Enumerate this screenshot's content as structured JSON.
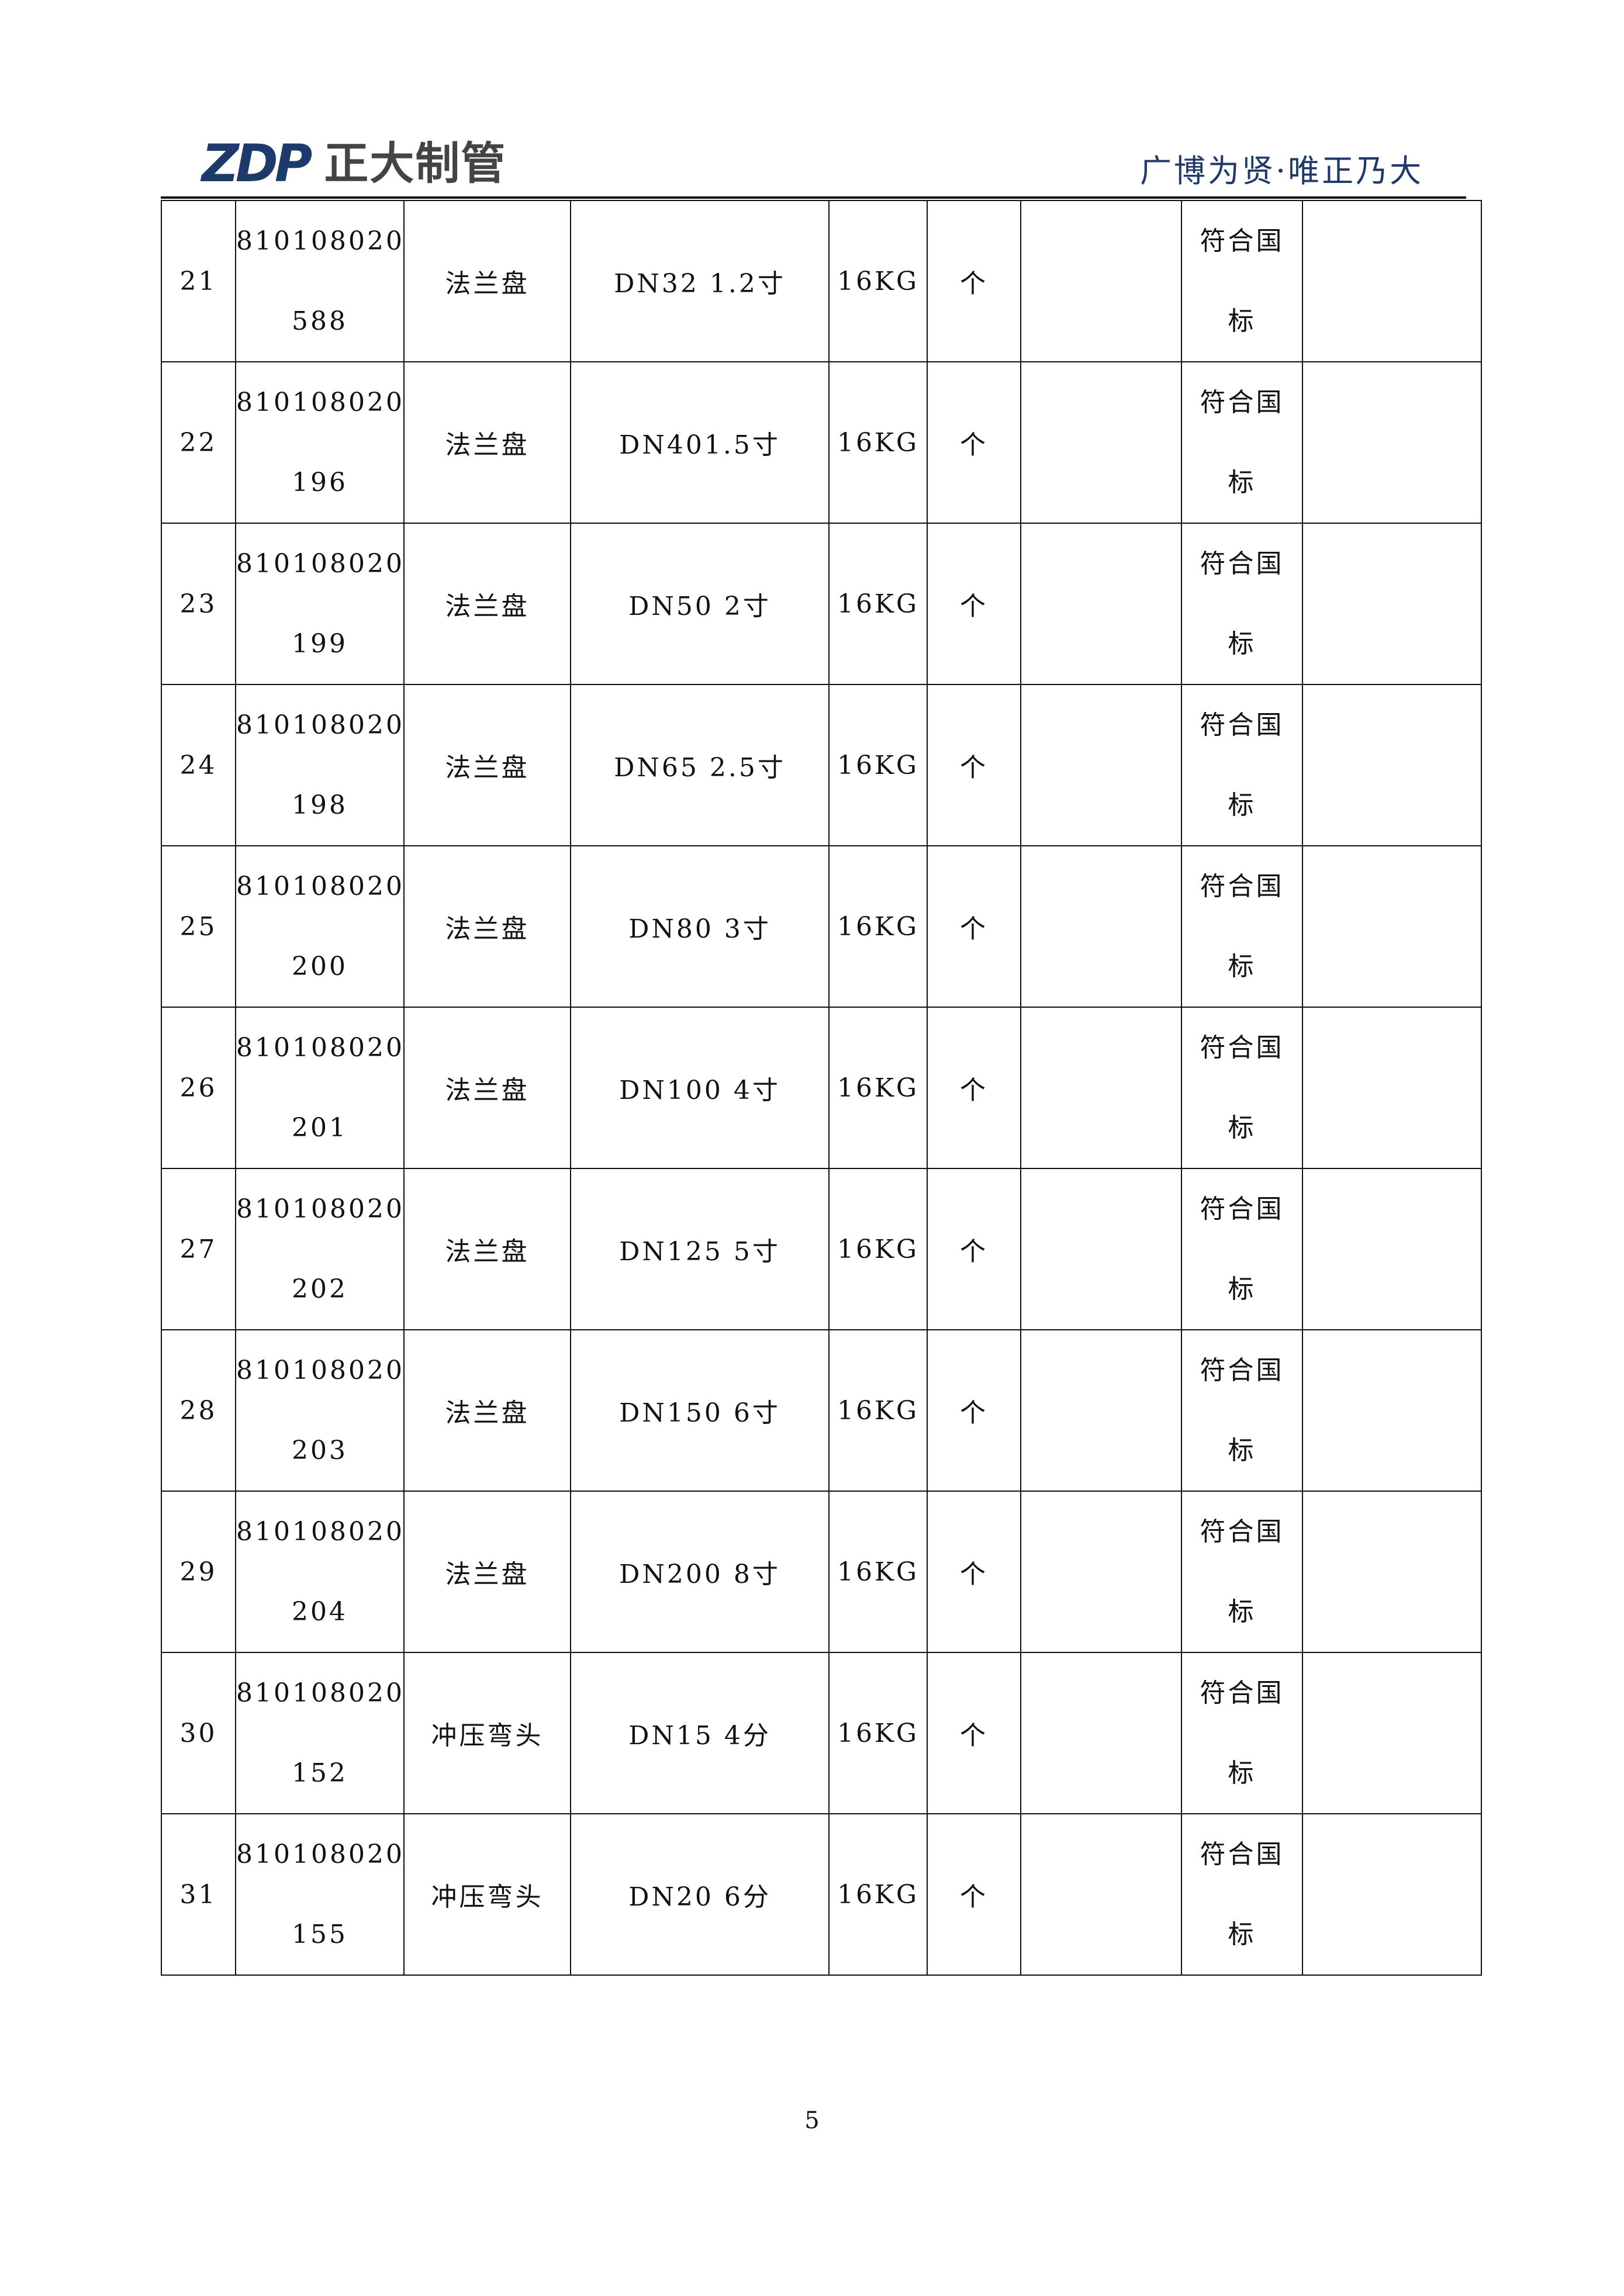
{
  "header": {
    "logo_mark": "ZDP",
    "logo_text": "正大制管",
    "slogan": "广博为贤·唯正乃大",
    "brand_color": "#1d3a6b"
  },
  "table": {
    "rows": [
      {
        "no": "21",
        "code_1": "810108020",
        "code_2": "588",
        "name": "法兰盘",
        "spec": "DN32 1.2寸",
        "pressure": "16KG",
        "unit": "个",
        "qty": "",
        "std_1": "符合国",
        "std_2": "标",
        "remark": ""
      },
      {
        "no": "22",
        "code_1": "810108020",
        "code_2": "196",
        "name": "法兰盘",
        "spec": "DN401.5寸",
        "pressure": "16KG",
        "unit": "个",
        "qty": "",
        "std_1": "符合国",
        "std_2": "标",
        "remark": ""
      },
      {
        "no": "23",
        "code_1": "810108020",
        "code_2": "199",
        "name": "法兰盘",
        "spec": "DN50 2寸",
        "pressure": "16KG",
        "unit": "个",
        "qty": "",
        "std_1": "符合国",
        "std_2": "标",
        "remark": ""
      },
      {
        "no": "24",
        "code_1": "810108020",
        "code_2": "198",
        "name": "法兰盘",
        "spec": "DN65 2.5寸",
        "pressure": "16KG",
        "unit": "个",
        "qty": "",
        "std_1": "符合国",
        "std_2": "标",
        "remark": ""
      },
      {
        "no": "25",
        "code_1": "810108020",
        "code_2": "200",
        "name": "法兰盘",
        "spec": "DN80 3寸",
        "pressure": "16KG",
        "unit": "个",
        "qty": "",
        "std_1": "符合国",
        "std_2": "标",
        "remark": ""
      },
      {
        "no": "26",
        "code_1": "810108020",
        "code_2": "201",
        "name": "法兰盘",
        "spec": "DN100 4寸",
        "pressure": "16KG",
        "unit": "个",
        "qty": "",
        "std_1": "符合国",
        "std_2": "标",
        "remark": ""
      },
      {
        "no": "27",
        "code_1": "810108020",
        "code_2": "202",
        "name": "法兰盘",
        "spec": "DN125 5寸",
        "pressure": "16KG",
        "unit": "个",
        "qty": "",
        "std_1": "符合国",
        "std_2": "标",
        "remark": ""
      },
      {
        "no": "28",
        "code_1": "810108020",
        "code_2": "203",
        "name": "法兰盘",
        "spec": "DN150 6寸",
        "pressure": "16KG",
        "unit": "个",
        "qty": "",
        "std_1": "符合国",
        "std_2": "标",
        "remark": ""
      },
      {
        "no": "29",
        "code_1": "810108020",
        "code_2": "204",
        "name": "法兰盘",
        "spec": "DN200 8寸",
        "pressure": "16KG",
        "unit": "个",
        "qty": "",
        "std_1": "符合国",
        "std_2": "标",
        "remark": ""
      },
      {
        "no": "30",
        "code_1": "810108020",
        "code_2": "152",
        "name": "冲压弯头",
        "spec": "DN15 4分",
        "pressure": "16KG",
        "unit": "个",
        "qty": "",
        "std_1": "符合国",
        "std_2": "标",
        "remark": ""
      },
      {
        "no": "31",
        "code_1": "810108020",
        "code_2": "155",
        "name": "冲压弯头",
        "spec": "DN20 6分",
        "pressure": "16KG",
        "unit": "个",
        "qty": "",
        "std_1": "符合国",
        "std_2": "标",
        "remark": ""
      }
    ]
  },
  "footer": {
    "page_number": "5"
  }
}
